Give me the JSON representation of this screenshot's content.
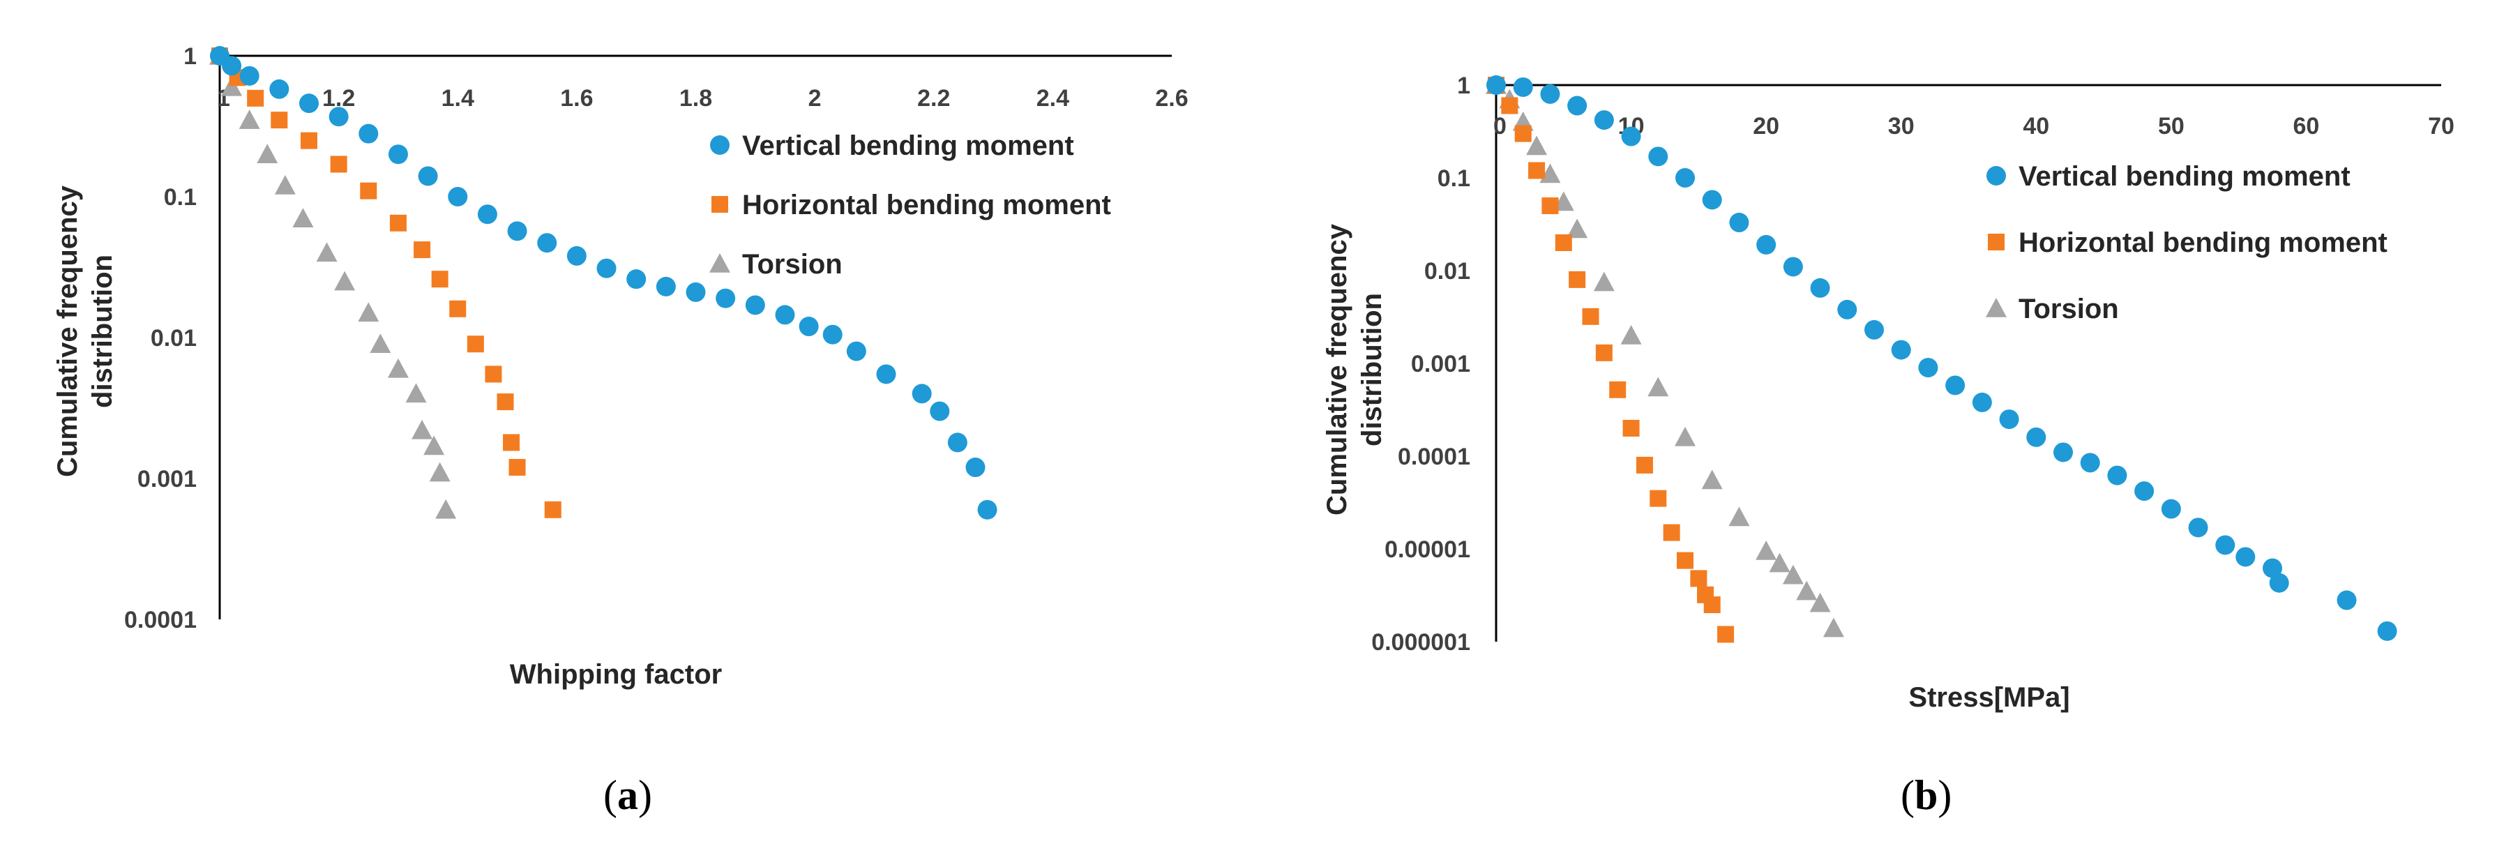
{
  "chart_data": [
    {
      "panel": "(a)",
      "panel_letter": "a",
      "type": "scatter",
      "xlabel": "Whipping factor",
      "ylabel": [
        "Cumulative frequency",
        "distribution"
      ],
      "xscale": "linear",
      "yscale": "log",
      "xlim": [
        1,
        2.6
      ],
      "ylim": [
        0.0001,
        1
      ],
      "xticks": [
        1,
        1.2,
        1.4,
        1.6,
        1.8,
        2,
        2.2,
        2.4,
        2.6
      ],
      "xtick_labels": [
        "1",
        "1.2",
        "1.4",
        "1.6",
        "1.8",
        "2",
        "2.2",
        "2.4",
        "2.6"
      ],
      "yticks": [
        1,
        0.1,
        0.01,
        0.001,
        0.0001
      ],
      "ytick_labels": [
        "1",
        "0.1",
        "0.01",
        "0.001",
        "0.0001"
      ],
      "series": [
        {
          "name": "Vertical bending moment",
          "color": "#1f9ad6",
          "marker": "circle",
          "points": [
            [
              1.0,
              1.0
            ],
            [
              1.02,
              0.85
            ],
            [
              1.05,
              0.72
            ],
            [
              1.1,
              0.58
            ],
            [
              1.15,
              0.46
            ],
            [
              1.2,
              0.37
            ],
            [
              1.25,
              0.28
            ],
            [
              1.3,
              0.2
            ],
            [
              1.35,
              0.14
            ],
            [
              1.4,
              0.1
            ],
            [
              1.45,
              0.075
            ],
            [
              1.5,
              0.057
            ],
            [
              1.55,
              0.047
            ],
            [
              1.6,
              0.038
            ],
            [
              1.65,
              0.031
            ],
            [
              1.7,
              0.026
            ],
            [
              1.75,
              0.023
            ],
            [
              1.8,
              0.021
            ],
            [
              1.85,
              0.019
            ],
            [
              1.9,
              0.017
            ],
            [
              1.95,
              0.0145
            ],
            [
              1.99,
              0.012
            ],
            [
              2.03,
              0.0105
            ],
            [
              2.07,
              0.008
            ],
            [
              2.12,
              0.0055
            ],
            [
              2.18,
              0.004
            ],
            [
              2.21,
              0.003
            ],
            [
              2.24,
              0.0018
            ],
            [
              2.27,
              0.0012
            ],
            [
              2.29,
              0.0006
            ]
          ]
        },
        {
          "name": "Horizontal bending moment",
          "color": "#f47c20",
          "marker": "square",
          "points": [
            [
              1.0,
              1.0
            ],
            [
              1.03,
              0.7
            ],
            [
              1.06,
              0.5
            ],
            [
              1.1,
              0.35
            ],
            [
              1.15,
              0.25
            ],
            [
              1.2,
              0.17
            ],
            [
              1.25,
              0.11
            ],
            [
              1.3,
              0.065
            ],
            [
              1.34,
              0.042
            ],
            [
              1.37,
              0.026
            ],
            [
              1.4,
              0.016
            ],
            [
              1.43,
              0.009
            ],
            [
              1.46,
              0.0055
            ],
            [
              1.48,
              0.0035
            ],
            [
              1.49,
              0.0018
            ],
            [
              1.5,
              0.0012
            ],
            [
              1.56,
              0.0006
            ]
          ]
        },
        {
          "name": "Torsion",
          "color": "#a5a5a5",
          "marker": "triangle",
          "points": [
            [
              1.0,
              1.0
            ],
            [
              1.02,
              0.6
            ],
            [
              1.05,
              0.35
            ],
            [
              1.08,
              0.2
            ],
            [
              1.11,
              0.12
            ],
            [
              1.14,
              0.07
            ],
            [
              1.18,
              0.04
            ],
            [
              1.21,
              0.025
            ],
            [
              1.25,
              0.015
            ],
            [
              1.27,
              0.009
            ],
            [
              1.3,
              0.006
            ],
            [
              1.33,
              0.004
            ],
            [
              1.34,
              0.0022
            ],
            [
              1.36,
              0.0017
            ],
            [
              1.37,
              0.0011
            ],
            [
              1.38,
              0.0006
            ]
          ]
        }
      ],
      "legend": [
        "Vertical bending moment",
        "Horizontal bending moment",
        "Torsion"
      ],
      "legend_position": "upper-right"
    },
    {
      "panel": "(b)",
      "panel_letter": "b",
      "type": "scatter",
      "xlabel": "Stress[MPa]",
      "ylabel": [
        "Cumulative frequency",
        "distribution"
      ],
      "xscale": "linear",
      "yscale": "log",
      "xlim": [
        0,
        70
      ],
      "ylim": [
        1e-06,
        1
      ],
      "xticks": [
        0,
        10,
        20,
        30,
        40,
        50,
        60,
        70
      ],
      "xtick_labels": [
        "0",
        "10",
        "20",
        "30",
        "40",
        "50",
        "60",
        "70"
      ],
      "yticks": [
        1,
        0.1,
        0.01,
        0.001,
        0.0001,
        1e-05,
        1e-06
      ],
      "ytick_labels": [
        "1",
        "0.1",
        "0.01",
        "0.001",
        "0.0001",
        "0.00001",
        "0.000001"
      ],
      "series": [
        {
          "name": "Vertical bending moment",
          "color": "#1f9ad6",
          "marker": "circle",
          "points": [
            [
              0,
              1.0
            ],
            [
              2,
              0.95
            ],
            [
              4,
              0.8
            ],
            [
              6,
              0.6
            ],
            [
              8,
              0.42
            ],
            [
              10,
              0.28
            ],
            [
              12,
              0.17
            ],
            [
              14,
              0.1
            ],
            [
              16,
              0.058
            ],
            [
              18,
              0.033
            ],
            [
              20,
              0.019
            ],
            [
              22,
              0.011
            ],
            [
              24,
              0.0065
            ],
            [
              26,
              0.0038
            ],
            [
              28,
              0.0023
            ],
            [
              30,
              0.0014
            ],
            [
              32,
              0.0009
            ],
            [
              34,
              0.00058
            ],
            [
              36,
              0.00038
            ],
            [
              38,
              0.00025
            ],
            [
              40,
              0.00016
            ],
            [
              42,
              0.00011
            ],
            [
              44,
              8.5e-05
            ],
            [
              46,
              6.2e-05
            ],
            [
              48,
              4.2e-05
            ],
            [
              50,
              2.7e-05
            ],
            [
              52,
              1.7e-05
            ],
            [
              54,
              1.1e-05
            ],
            [
              55.5,
              8.2e-06
            ],
            [
              57.5,
              6.2e-06
            ],
            [
              58,
              4.3e-06
            ],
            [
              63,
              2.8e-06
            ],
            [
              66,
              1.3e-06
            ]
          ]
        },
        {
          "name": "Horizontal bending moment",
          "color": "#f47c20",
          "marker": "square",
          "points": [
            [
              0,
              1.0
            ],
            [
              1,
              0.6
            ],
            [
              2,
              0.3
            ],
            [
              3,
              0.12
            ],
            [
              4,
              0.05
            ],
            [
              5,
              0.02
            ],
            [
              6,
              0.008
            ],
            [
              7,
              0.0032
            ],
            [
              8,
              0.0013
            ],
            [
              9,
              0.00052
            ],
            [
              10,
              0.0002
            ],
            [
              11,
              8e-05
            ],
            [
              12,
              3.5e-05
            ],
            [
              13,
              1.5e-05
            ],
            [
              14,
              7.5e-06
            ],
            [
              15,
              4.8e-06
            ],
            [
              15.5,
              3.2e-06
            ],
            [
              16,
              2.5e-06
            ],
            [
              17,
              1.2e-06
            ]
          ]
        },
        {
          "name": "Torsion",
          "color": "#a5a5a5",
          "marker": "triangle",
          "points": [
            [
              0,
              1.0
            ],
            [
              1,
              0.7
            ],
            [
              2,
              0.4
            ],
            [
              3,
              0.22
            ],
            [
              4,
              0.11
            ],
            [
              5,
              0.055
            ],
            [
              6,
              0.028
            ],
            [
              8,
              0.0075
            ],
            [
              10,
              0.002
            ],
            [
              12,
              0.00055
            ],
            [
              14,
              0.00016
            ],
            [
              16,
              5.5e-05
            ],
            [
              18,
              2.2e-05
            ],
            [
              20,
              9.5e-06
            ],
            [
              21,
              7e-06
            ],
            [
              22,
              5.2e-06
            ],
            [
              23,
              3.5e-06
            ],
            [
              24,
              2.6e-06
            ],
            [
              25,
              1.4e-06
            ]
          ]
        }
      ],
      "legend": [
        "Vertical bending moment",
        "Horizontal bending moment",
        "Torsion"
      ],
      "legend_position": "upper-right"
    }
  ]
}
